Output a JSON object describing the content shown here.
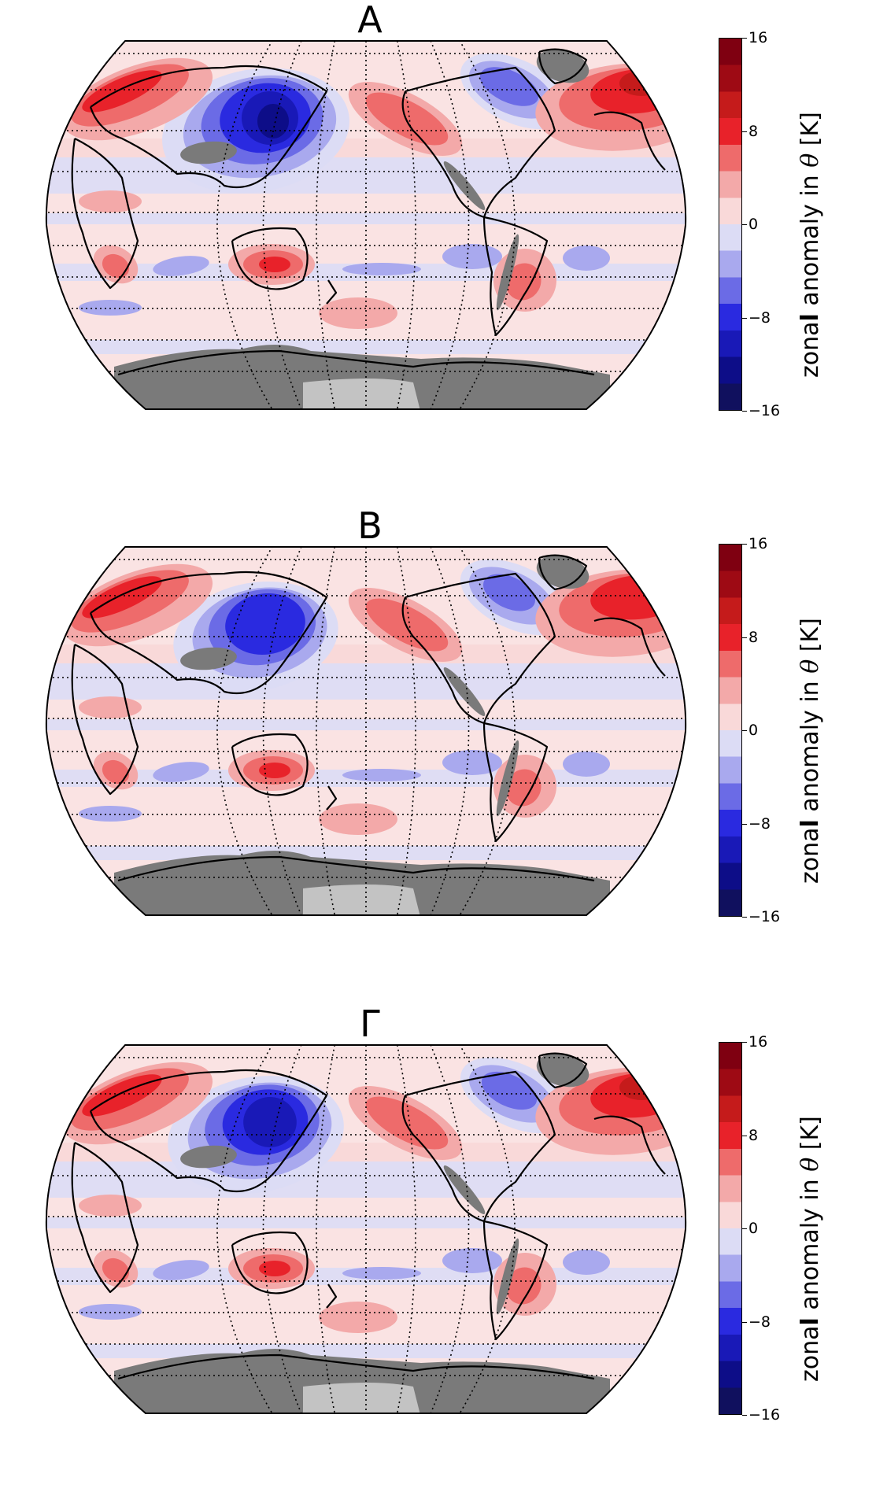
{
  "panels": [
    {
      "title": "A"
    },
    {
      "title": "B"
    },
    {
      "title": "Γ"
    }
  ],
  "colorbar": {
    "ticks": [
      "16",
      "8",
      "0",
      "−8",
      "−16"
    ],
    "label_prefix": "zona",
    "label_bold": "l",
    "label_mid": " anomaly in ",
    "label_symbol": "θ",
    "label_suffix": " [K]",
    "range": [
      -16,
      16
    ],
    "colors_positive": [
      "#f9d9d9",
      "#f3a9a9",
      "#ee6b6b",
      "#e8222a",
      "#c51b1b",
      "#9e0a14",
      "#7f0011"
    ],
    "colors_negative": [
      "#dcdcf5",
      "#a9a9ee",
      "#6b6be6",
      "#2a2ae0",
      "#1919b7",
      "#0d0d88",
      "#10105e"
    ],
    "land_ice_color": "#7a7a7a"
  }
}
